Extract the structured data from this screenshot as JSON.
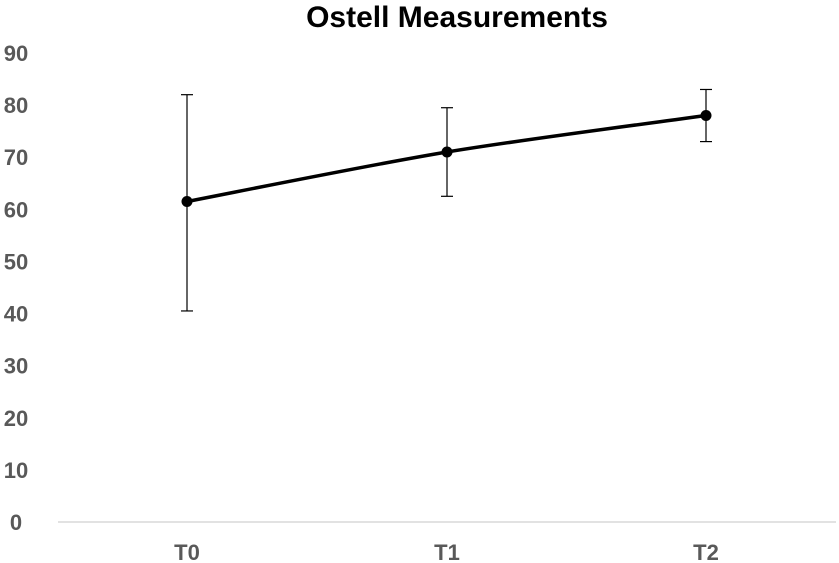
{
  "chart_data": {
    "type": "line",
    "title": "Ostell Measurements",
    "xlabel": "",
    "ylabel": "",
    "categories": [
      "T0",
      "T1",
      "T2"
    ],
    "series": [
      {
        "values": [
          61.5,
          71,
          78
        ],
        "error_low": [
          40.5,
          62.5,
          73
        ],
        "error_high": [
          82,
          79.5,
          83
        ]
      }
    ],
    "ylim": [
      0,
      90
    ],
    "yticks": [
      "0",
      "10",
      "20",
      "30",
      "40",
      "50",
      "60",
      "70",
      "80",
      "90"
    ],
    "grid": false,
    "legend": "none",
    "colors": {
      "line": "#000000",
      "marker": "#000000",
      "error_bar": "#000000",
      "axis": "#d9d9d9",
      "tick_label": "#595959",
      "title": "#000000"
    }
  }
}
